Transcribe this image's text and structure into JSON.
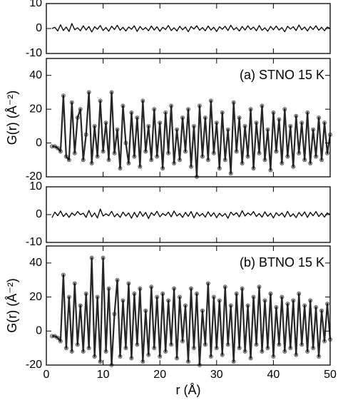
{
  "chart_data": [
    {
      "type": "line",
      "x": [
        1,
        1.5,
        2,
        2.5,
        3,
        3.5,
        4,
        4.5,
        5,
        5.5,
        6,
        6.5,
        7,
        7.5,
        8,
        8.5,
        9,
        9.5,
        10,
        10.5,
        11,
        11.5,
        12,
        12.5,
        13,
        13.5,
        14,
        14.5,
        15,
        15.5,
        16,
        16.5,
        17,
        17.5,
        18,
        18.5,
        19,
        19.5,
        20,
        20.5,
        21,
        21.5,
        22,
        22.5,
        23,
        23.5,
        24,
        24.5,
        25,
        25.5,
        26,
        26.5,
        27,
        27.5,
        28,
        28.5,
        29,
        29.5,
        30,
        30.5,
        31,
        31.5,
        32,
        32.5,
        33,
        33.5,
        34,
        34.5,
        35,
        35.5,
        36,
        36.5,
        37,
        37.5,
        38,
        38.5,
        39,
        39.5,
        40,
        40.5,
        41,
        41.5,
        42,
        42.5,
        43,
        43.5,
        44,
        44.5,
        45,
        45.5,
        46,
        46.5,
        47,
        47.5,
        48,
        48.5,
        49,
        49.5,
        50
      ],
      "series": [
        {
          "color": "#000000",
          "values": [
            0,
            0.5,
            -1,
            1.5,
            -0.8,
            0.6,
            -1.2,
            2,
            -0.5,
            0.3,
            -0.9,
            1.1,
            -0.6,
            0.8,
            -1.4,
            0.7,
            -0.3,
            1.2,
            -0.8,
            0.4,
            -1.1,
            0.9,
            -0.4,
            1.3,
            -0.7,
            0.5,
            -1,
            0.6,
            -0.3,
            1.1,
            -1.2,
            0.8,
            -0.5,
            0.4,
            -0.9,
            1,
            -0.6,
            0.7,
            -1.1,
            0.5,
            -0.4,
            1.2,
            -0.8,
            0.3,
            -1,
            0.9,
            -0.5,
            0.6,
            -1.3,
            0.8,
            -0.2,
            1.1,
            -0.7,
            0.4,
            -0.9,
            1,
            -0.6,
            0.5,
            -1.2,
            0.7,
            -0.3,
            0.9,
            -0.8,
            1.3,
            -0.5,
            0.4,
            -1,
            0.8,
            -0.6,
            1.1,
            -0.4,
            0.6,
            -0.9,
            1.2,
            -0.7,
            0.3,
            -1.1,
            0.8,
            -0.5,
            1,
            -0.6,
            0.4,
            -1.3,
            0.9,
            -0.2,
            0.7,
            -0.8,
            1.4,
            -0.5,
            0.6,
            -1,
            0.8,
            -0.4,
            1.1,
            -0.7,
            0.5,
            -0.9,
            0.6,
            0
          ]
        }
      ],
      "xlim": [
        0,
        50
      ],
      "xticks": [
        0,
        10,
        20,
        30,
        40,
        50
      ],
      "ylim": [
        -10,
        10
      ],
      "yticks": [
        10,
        0,
        -10
      ]
    },
    {
      "type": "line",
      "x": [
        1,
        1.5,
        2,
        2.5,
        3,
        3.5,
        4,
        4.5,
        5,
        5.5,
        6,
        6.5,
        7,
        7.5,
        8,
        8.5,
        9,
        9.5,
        10,
        10.5,
        11,
        11.5,
        12,
        12.5,
        13,
        13.5,
        14,
        14.5,
        15,
        15.5,
        16,
        16.5,
        17,
        17.5,
        18,
        18.5,
        19,
        19.5,
        20,
        20.5,
        21,
        21.5,
        22,
        22.5,
        23,
        23.5,
        24,
        24.5,
        25,
        25.5,
        26,
        26.5,
        27,
        27.5,
        28,
        28.5,
        29,
        29.5,
        30,
        30.5,
        31,
        31.5,
        32,
        32.5,
        33,
        33.5,
        34,
        34.5,
        35,
        35.5,
        36,
        36.5,
        37,
        37.5,
        38,
        38.5,
        39,
        39.5,
        40,
        40.5,
        41,
        41.5,
        42,
        42.5,
        43,
        43.5,
        44,
        44.5,
        45,
        45.5,
        46,
        46.5,
        47,
        47.5,
        48,
        48.5,
        49,
        49.5,
        50
      ],
      "series": [
        {
          "color": "#000000",
          "marker_color": "#b0b0b0",
          "markers": true,
          "values": [
            -2,
            -2,
            -3,
            -5,
            28,
            -8,
            -10,
            24,
            -6,
            15,
            20,
            -10,
            5,
            30,
            -12,
            10,
            -8,
            25,
            -5,
            12,
            -10,
            30,
            -6,
            8,
            -15,
            22,
            0,
            -12,
            18,
            -8,
            15,
            -14,
            25,
            -5,
            10,
            -10,
            20,
            -8,
            12,
            -15,
            18,
            -6,
            22,
            -12,
            8,
            -10,
            15,
            -5,
            20,
            -14,
            10,
            -20,
            22,
            -8,
            15,
            -10,
            25,
            -6,
            12,
            -15,
            18,
            -10,
            8,
            -18,
            24,
            -5,
            15,
            -12,
            10,
            -8,
            20,
            -15,
            12,
            -6,
            22,
            -10,
            8,
            -16,
            18,
            -5,
            14,
            -12,
            20,
            -8,
            10,
            -14,
            16,
            -6,
            12,
            -10,
            18,
            -12,
            8,
            -8,
            15,
            -10,
            12,
            -6,
            5
          ]
        }
      ],
      "xlim": [
        0,
        50
      ],
      "xticks": [
        0,
        10,
        20,
        30,
        40,
        50
      ],
      "ylim": [
        -20,
        50
      ],
      "yticks": [
        40,
        20,
        0,
        -20
      ],
      "ylabel": "G(r) (Å⁻²)",
      "annotation": "(a) STNO 15 K"
    },
    {
      "type": "line",
      "x": [
        1,
        1.5,
        2,
        2.5,
        3,
        3.5,
        4,
        4.5,
        5,
        5.5,
        6,
        6.5,
        7,
        7.5,
        8,
        8.5,
        9,
        9.5,
        10,
        10.5,
        11,
        11.5,
        12,
        12.5,
        13,
        13.5,
        14,
        14.5,
        15,
        15.5,
        16,
        16.5,
        17,
        17.5,
        18,
        18.5,
        19,
        19.5,
        20,
        20.5,
        21,
        21.5,
        22,
        22.5,
        23,
        23.5,
        24,
        24.5,
        25,
        25.5,
        26,
        26.5,
        27,
        27.5,
        28,
        28.5,
        29,
        29.5,
        30,
        30.5,
        31,
        31.5,
        32,
        32.5,
        33,
        33.5,
        34,
        34.5,
        35,
        35.5,
        36,
        36.5,
        37,
        37.5,
        38,
        38.5,
        39,
        39.5,
        40,
        40.5,
        41,
        41.5,
        42,
        42.5,
        43,
        43.5,
        44,
        44.5,
        45,
        45.5,
        46,
        46.5,
        47,
        47.5,
        48,
        48.5,
        49,
        49.5,
        50
      ],
      "series": [
        {
          "color": "#000000",
          "values": [
            -1.1,
            0.9,
            -0.4,
            1.3,
            -0.7,
            0.5,
            -1,
            0.6,
            -0.3,
            1.1,
            0,
            0.5,
            -1,
            1.5,
            -0.8,
            0.6,
            -1.2,
            2,
            -0.5,
            0.3,
            -0.4,
            1.2,
            -0.8,
            0.3,
            -1,
            0.9,
            -0.5,
            0.6,
            -1.3,
            0.8,
            -0.9,
            1.1,
            -0.6,
            0.8,
            -1.4,
            0.7,
            -0.3,
            1.2,
            -0.8,
            0.4,
            -0.3,
            0.9,
            -0.8,
            1.3,
            -0.5,
            0.4,
            -1,
            0.8,
            -0.6,
            1.1,
            -1.2,
            0.8,
            -0.5,
            0.4,
            -0.9,
            1,
            -0.6,
            0.7,
            -1.1,
            0.5,
            -0.6,
            0.4,
            -1.3,
            0.9,
            -0.2,
            0.7,
            -0.8,
            1.4,
            -0.5,
            0.6,
            -0.2,
            1.1,
            -0.7,
            0.4,
            -0.9,
            1,
            -0.6,
            0.5,
            -1.2,
            0.7,
            -0.4,
            0.6,
            -0.9,
            1.2,
            -0.7,
            0.3,
            -1.1,
            0.8,
            -0.5,
            1,
            -1,
            0.8,
            -0.4,
            1.1,
            -0.7,
            0.5,
            -0.9,
            0.6,
            0
          ]
        }
      ],
      "xlim": [
        0,
        50
      ],
      "xticks": [
        0,
        10,
        20,
        30,
        40,
        50
      ],
      "ylim": [
        -10,
        10
      ],
      "yticks": [
        10,
        0,
        -10
      ]
    },
    {
      "type": "line",
      "x": [
        1,
        1.5,
        2,
        2.5,
        3,
        3.5,
        4,
        4.5,
        5,
        5.5,
        6,
        6.5,
        7,
        7.5,
        8,
        8.5,
        9,
        9.5,
        10,
        10.5,
        11,
        11.5,
        12,
        12.5,
        13,
        13.5,
        14,
        14.5,
        15,
        15.5,
        16,
        16.5,
        17,
        17.5,
        18,
        18.5,
        19,
        19.5,
        20,
        20.5,
        21,
        21.5,
        22,
        22.5,
        23,
        23.5,
        24,
        24.5,
        25,
        25.5,
        26,
        26.5,
        27,
        27.5,
        28,
        28.5,
        29,
        29.5,
        30,
        30.5,
        31,
        31.5,
        32,
        32.5,
        33,
        33.5,
        34,
        34.5,
        35,
        35.5,
        36,
        36.5,
        37,
        37.5,
        38,
        38.5,
        39,
        39.5,
        40,
        40.5,
        41,
        41.5,
        42,
        42.5,
        43,
        43.5,
        44,
        44.5,
        45,
        45.5,
        46,
        46.5,
        47,
        47.5,
        48,
        48.5,
        49,
        49.5,
        50
      ],
      "series": [
        {
          "color": "#000000",
          "marker_color": "#b0b0b0",
          "markers": true,
          "values": [
            -3,
            -3,
            -4,
            -6,
            33,
            -10,
            20,
            -12,
            28,
            -8,
            15,
            -12,
            22,
            -10,
            43,
            -15,
            20,
            -18,
            43,
            -12,
            25,
            -20,
            10,
            30,
            -15,
            18,
            -10,
            28,
            -16,
            22,
            -8,
            25,
            -18,
            12,
            -14,
            26,
            -10,
            20,
            -15,
            22,
            -12,
            18,
            -8,
            25,
            -16,
            20,
            -6,
            15,
            -18,
            25,
            -10,
            22,
            -20,
            12,
            -8,
            28,
            -15,
            20,
            -10,
            18,
            -14,
            26,
            -8,
            15,
            -18,
            22,
            -10,
            25,
            -12,
            15,
            -16,
            20,
            -8,
            26,
            -12,
            18,
            -10,
            22,
            -15,
            14,
            -8,
            20,
            -12,
            16,
            -10,
            18,
            -14,
            22,
            -8,
            15,
            -12,
            18,
            -10,
            14,
            -15,
            12,
            -6,
            16,
            -5
          ]
        }
      ],
      "xlim": [
        0,
        50
      ],
      "xticks": [
        0,
        10,
        20,
        30,
        40,
        50
      ],
      "ylim": [
        -20,
        50
      ],
      "yticks": [
        40,
        20,
        0,
        -20
      ],
      "ylabel": "G(r) (Å⁻²)",
      "annotation": "(b) BTNO 15 K",
      "xlabel": "r (Å)"
    }
  ]
}
